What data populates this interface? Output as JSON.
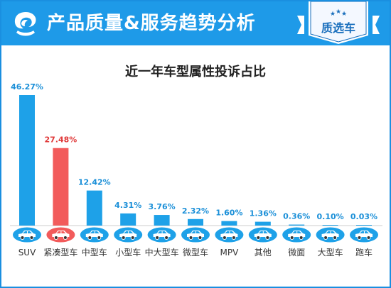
{
  "header": {
    "title": "产品质量&服务趋势分析",
    "badge_text": "质选车",
    "logo_icon": "brand-logo-icon",
    "badge_icon": "ribbon-badge-icon"
  },
  "colors": {
    "header_blue": "#1e9ae8",
    "bar_blue": "#1ea1e8",
    "bar_red": "#f25b5b",
    "label_blue": "#1a8fd8",
    "label_red": "#e03a3a"
  },
  "chart_data": {
    "type": "bar",
    "title": "近一年车型属性投诉占比",
    "categories": [
      "SUV",
      "紧凑型车",
      "中型车",
      "小型车",
      "中大型车",
      "微型车",
      "MPV",
      "其他",
      "微面",
      "大型车",
      "跑车"
    ],
    "values": [
      46.27,
      27.48,
      12.42,
      4.31,
      3.76,
      2.32,
      1.6,
      1.36,
      0.36,
      0.1,
      0.03
    ],
    "value_labels": [
      "46.27%",
      "27.48%",
      "12.42%",
      "4.31%",
      "3.76%",
      "2.32%",
      "1.60%",
      "1.36%",
      "0.36%",
      "0.10%",
      "0.03%"
    ],
    "highlight_index": 1,
    "ylim": [
      0,
      46.27
    ],
    "xlabel": "",
    "ylabel": "",
    "grid": false,
    "category_icon": "car-icon"
  }
}
